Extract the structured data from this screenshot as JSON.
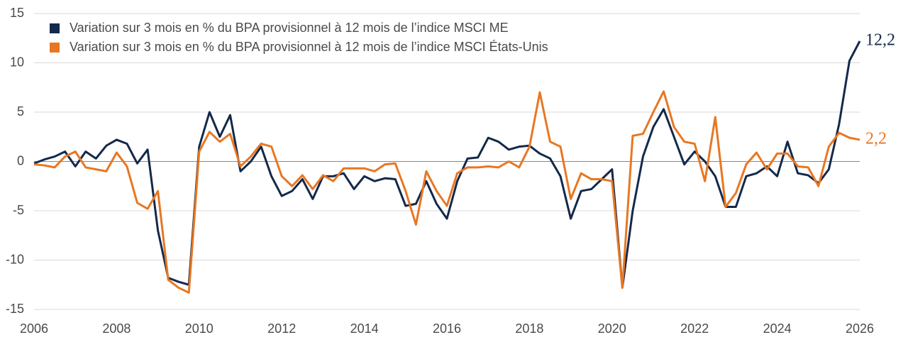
{
  "chart_data": {
    "type": "line",
    "x": [
      2006,
      2006.25,
      2006.5,
      2006.75,
      2007,
      2007.25,
      2007.5,
      2007.75,
      2008,
      2008.25,
      2008.5,
      2008.75,
      2009,
      2009.25,
      2009.5,
      2009.75,
      2010,
      2010.25,
      2010.5,
      2010.75,
      2011,
      2011.25,
      2011.5,
      2011.75,
      2012,
      2012.25,
      2012.5,
      2012.75,
      2013,
      2013.25,
      2013.5,
      2013.75,
      2014,
      2014.25,
      2014.5,
      2014.75,
      2015,
      2015.25,
      2015.5,
      2015.75,
      2016,
      2016.25,
      2016.5,
      2016.75,
      2017,
      2017.25,
      2017.5,
      2017.75,
      2018,
      2018.25,
      2018.5,
      2018.75,
      2019,
      2019.25,
      2019.5,
      2019.75,
      2020,
      2020.25,
      2020.5,
      2020.75,
      2021,
      2021.25,
      2021.5,
      2021.75,
      2022,
      2022.25,
      2022.5,
      2022.75,
      2023,
      2023.25,
      2023.5,
      2023.75,
      2024,
      2024.25,
      2024.5,
      2024.75,
      2025,
      2025.25,
      2025.5,
      2025.75,
      2026
    ],
    "series": [
      {
        "name": "Variation sur 3 mois en % du BPA provisionnel à 12 mois de l’indice MSCI ME",
        "color": "#13294b",
        "end_label": "12,2",
        "values": [
          -0.2,
          0.2,
          0.5,
          1.0,
          -0.5,
          1.0,
          0.3,
          1.6,
          2.2,
          1.8,
          -0.2,
          1.2,
          -7,
          -11.8,
          -12.2,
          -12.5,
          1.5,
          5.0,
          2.5,
          4.7,
          -1.0,
          0,
          1.5,
          -1.5,
          -3.5,
          -3.0,
          -1.8,
          -3.8,
          -1.5,
          -1.5,
          -1.2,
          -2.8,
          -1.5,
          -2.0,
          -1.7,
          -1.8,
          -4.5,
          -4.3,
          -2.0,
          -4.3,
          -5.8,
          -2.0,
          0.3,
          0.4,
          2.4,
          2.0,
          1.2,
          1.5,
          1.6,
          0.8,
          0.3,
          -1.5,
          -5.8,
          -3.0,
          -2.8,
          -1.8,
          -0.8,
          -12.8,
          -5.0,
          0.5,
          3.5,
          5.3,
          2.5,
          -0.3,
          1.0,
          0,
          -1.5,
          -4.6,
          -4.6,
          -1.5,
          -1.2,
          -0.5,
          -1.5,
          2.0,
          -1.2,
          -1.4,
          -2.2,
          -0.8,
          3.8,
          10.2,
          12.2
        ]
      },
      {
        "name": "Variation sur 3 mois en % du BPA provisionnel à 12 mois de l’indice MSCI États-Unis",
        "color": "#e87722",
        "end_label": "2,2",
        "values": [
          -0.3,
          -0.4,
          -0.6,
          0.5,
          1.0,
          -0.6,
          -0.8,
          -1.0,
          0.9,
          -0.5,
          -4.2,
          -4.8,
          -3.0,
          -12.0,
          -12.8,
          -13.3,
          1.0,
          3.0,
          2.0,
          2.8,
          -0.5,
          0.5,
          1.8,
          1.5,
          -1.5,
          -2.5,
          -1.4,
          -2.8,
          -1.4,
          -2.0,
          -0.7,
          -0.7,
          -0.7,
          -1.0,
          -0.3,
          -0.2,
          -3.0,
          -6.4,
          -1.0,
          -3.0,
          -4.5,
          -1.2,
          -0.6,
          -0.6,
          -0.5,
          -0.6,
          0.0,
          -0.6,
          1.5,
          7.0,
          2.0,
          1.5,
          -3.8,
          -1.2,
          -1.8,
          -1.8,
          -2.0,
          -12.8,
          2.6,
          2.8,
          5.0,
          7.1,
          3.5,
          2.0,
          1.8,
          -2.0,
          4.5,
          -4.6,
          -3.2,
          -0.3,
          0.9,
          -0.8,
          0.8,
          0.8,
          -0.5,
          -0.6,
          -2.5,
          1.5,
          2.9,
          2.4,
          2.2
        ]
      }
    ],
    "xlim": [
      2006,
      2026
    ],
    "xticks": [
      2006,
      2008,
      2010,
      2012,
      2014,
      2016,
      2018,
      2020,
      2022,
      2024,
      2026
    ],
    "ylim": [
      -15,
      15
    ],
    "yticks": [
      -15,
      -10,
      -5,
      0,
      5,
      10,
      15
    ],
    "grid": true
  }
}
